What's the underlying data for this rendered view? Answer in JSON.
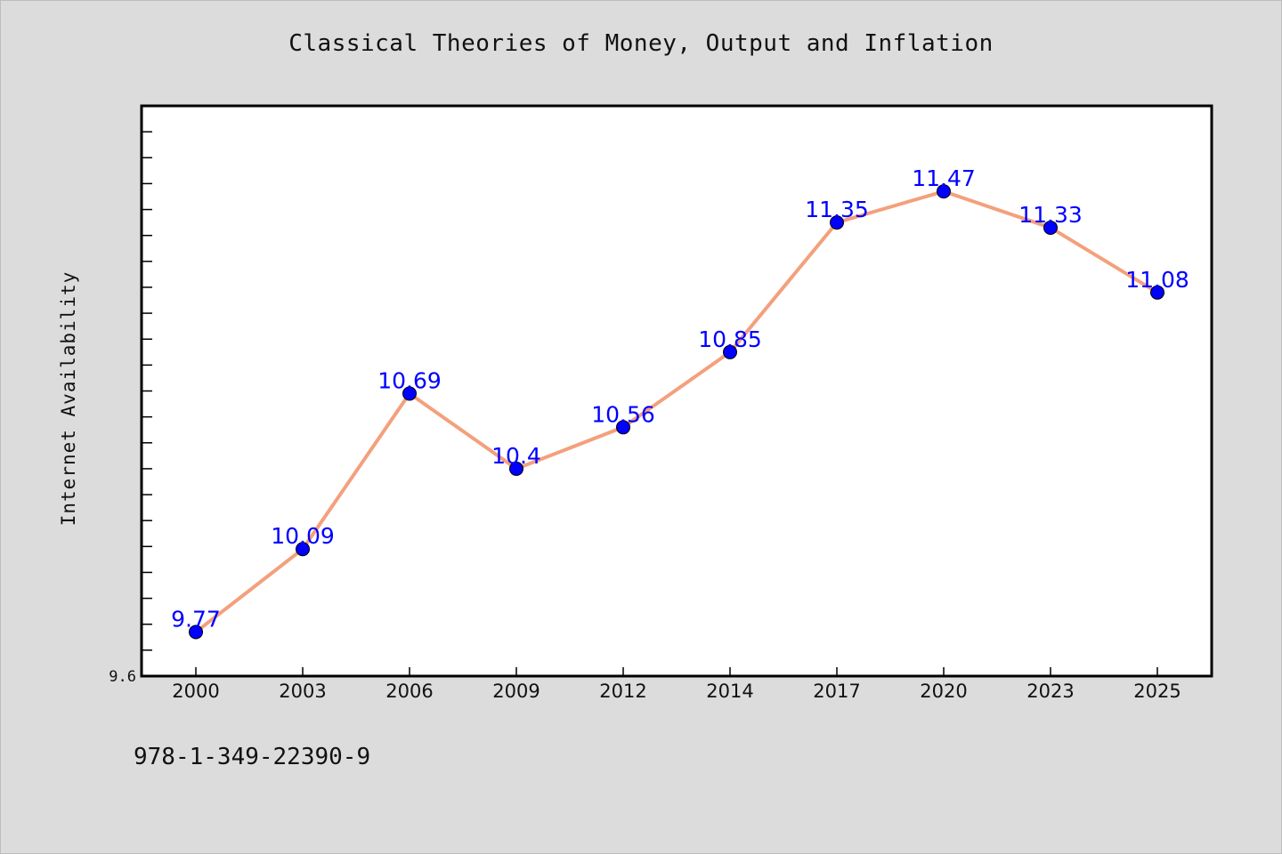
{
  "title": "Classical Theories of Money, Output and Inflation",
  "footer_text": "978-1-349-22390-9",
  "colors": {
    "background": "#dcdcdc",
    "plot_background": "#ffffff",
    "line": "#f4a07c",
    "marker": "#0000ff",
    "data_label": "#0000ff"
  },
  "chart_data": {
    "type": "line",
    "title": "Classical Theories of Money, Output and Inflation",
    "xlabel": "",
    "ylabel": "Internet Availability",
    "categories": [
      "2000",
      "2003",
      "2006",
      "2009",
      "2012",
      "2014",
      "2017",
      "2020",
      "2023",
      "2025"
    ],
    "series": [
      {
        "values": [
          9.77,
          10.09,
          10.69,
          10.4,
          10.56,
          10.85,
          11.35,
          11.47,
          11.33,
          11.08
        ],
        "labels": [
          "9.77",
          "10.09",
          "10.69",
          "10.4",
          "10.56",
          "10.85",
          "11.35",
          "11.47",
          "11.33",
          "11.08"
        ]
      }
    ],
    "ylim": [
      9.6,
      11.8
    ],
    "yticks_labeled": [
      "9.6"
    ],
    "grid": false,
    "legend": "none"
  }
}
